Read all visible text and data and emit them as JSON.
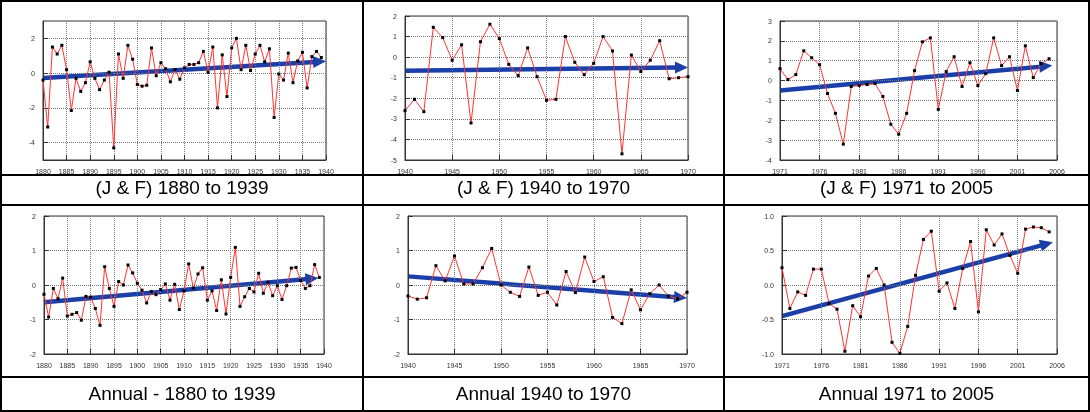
{
  "chart_data": [
    {
      "type": "line",
      "title": "(J & F) 1880 to 1939",
      "xlim": [
        1880,
        1940
      ],
      "xticks": [
        1880,
        1885,
        1890,
        1895,
        1900,
        1905,
        1910,
        1915,
        1920,
        1925,
        1930,
        1935,
        1940
      ],
      "ylim": [
        -5,
        3
      ],
      "yticks": [
        -4,
        -2,
        0,
        2
      ],
      "grid": true,
      "marker": "square",
      "x": [
        1880,
        1881,
        1882,
        1883,
        1884,
        1885,
        1886,
        1887,
        1888,
        1889,
        1890,
        1891,
        1892,
        1893,
        1894,
        1895,
        1896,
        1897,
        1898,
        1899,
        1900,
        1901,
        1902,
        1903,
        1904,
        1905,
        1906,
        1907,
        1908,
        1909,
        1910,
        1911,
        1912,
        1913,
        1914,
        1915,
        1916,
        1917,
        1918,
        1919,
        1920,
        1921,
        1922,
        1923,
        1924,
        1925,
        1926,
        1927,
        1928,
        1929,
        1930,
        1931,
        1932,
        1933,
        1934,
        1935,
        1936,
        1937,
        1938,
        1939
      ],
      "series": [
        {
          "color": "#ff3333",
          "values": [
            -0.4,
            -3.1,
            1.5,
            1.1,
            1.6,
            0.2,
            -2.15,
            -0.3,
            -1.05,
            -0.55,
            0.65,
            -0.3,
            -0.95,
            -0.4,
            0.05,
            -4.3,
            1.1,
            -0.3,
            1.6,
            0.8,
            -0.65,
            -0.75,
            -0.7,
            1.45,
            -0.15,
            0.6,
            0.25,
            -0.5,
            0.2,
            -0.35,
            0.3,
            0.5,
            0.5,
            0.6,
            1.25,
            0.05,
            1.5,
            -2.0,
            1.05,
            -1.35,
            1.45,
            2.0,
            0.2,
            1.6,
            0.15,
            1.1,
            1.6,
            0.65,
            1.4,
            -2.55,
            -0.05,
            -0.4,
            1.15,
            -0.55,
            0.7,
            1.2,
            -0.85,
            0.95,
            1.25,
            0.9
          ]
        }
      ]
    },
    {
      "type": "line",
      "title": "(J & F) 1940 to 1970",
      "xlim": [
        1940,
        1970
      ],
      "xticks": [
        1940,
        1945,
        1950,
        1955,
        1960,
        1965,
        1970
      ],
      "ylim": [
        -5,
        2
      ],
      "yticks": [
        -5,
        -4,
        -3,
        -2,
        -1,
        0,
        1,
        2
      ],
      "grid": true,
      "marker": "square",
      "x": [
        1940,
        1941,
        1942,
        1943,
        1944,
        1945,
        1946,
        1947,
        1948,
        1949,
        1950,
        1951,
        1952,
        1953,
        1954,
        1955,
        1956,
        1957,
        1958,
        1959,
        1960,
        1961,
        1962,
        1963,
        1964,
        1965,
        1966,
        1967,
        1968,
        1969,
        1970
      ],
      "series": [
        {
          "color": "#ff3333",
          "values": [
            -2.6,
            -2.05,
            -2.65,
            1.45,
            0.95,
            -0.15,
            0.6,
            -3.2,
            0.75,
            1.6,
            0.9,
            -0.35,
            -0.9,
            0.45,
            -0.95,
            -2.1,
            -2.05,
            1.0,
            -0.25,
            -0.85,
            -0.3,
            1.0,
            0.3,
            -4.7,
            0.1,
            -0.7,
            -0.15,
            0.8,
            -1.05,
            -1.0,
            -0.95
          ]
        }
      ]
    },
    {
      "type": "line",
      "title": "(J & F) 1971 to 2005",
      "xlim": [
        1971,
        2006
      ],
      "xticks": [
        1971,
        1976,
        1981,
        1986,
        1991,
        1996,
        2001,
        2006
      ],
      "ylim": [
        -4,
        3
      ],
      "yticks": [
        -4,
        -3,
        -2,
        -1,
        0,
        1,
        2,
        3
      ],
      "grid": true,
      "marker": "square",
      "x": [
        1971,
        1972,
        1973,
        1974,
        1975,
        1976,
        1977,
        1978,
        1979,
        1980,
        1981,
        1982,
        1983,
        1984,
        1985,
        1986,
        1987,
        1988,
        1989,
        1990,
        1991,
        1992,
        1993,
        1994,
        1995,
        1996,
        1997,
        1998,
        1999,
        2000,
        2001,
        2002,
        2003,
        2004,
        2005
      ],
      "series": [
        {
          "color": "#ff3333",
          "values": [
            0.6,
            0.05,
            0.3,
            1.5,
            1.15,
            0.8,
            -0.65,
            -1.65,
            -3.2,
            -0.3,
            -0.25,
            -0.2,
            -0.15,
            -0.8,
            -2.2,
            -2.7,
            -1.65,
            0.5,
            1.95,
            2.15,
            -1.45,
            0.45,
            1.2,
            -0.3,
            0.9,
            -0.25,
            0.35,
            2.15,
            0.75,
            1.2,
            -0.5,
            1.75,
            0.15,
            0.85,
            1.1
          ]
        }
      ]
    },
    {
      "type": "line",
      "title": "Annual - 1880 to 1939",
      "xlim": [
        1880,
        1940
      ],
      "xticks": [
        1880,
        1885,
        1890,
        1895,
        1900,
        1905,
        1910,
        1915,
        1920,
        1925,
        1930,
        1935,
        1940
      ],
      "ylim": [
        -2,
        2
      ],
      "yticks": [
        -2,
        -1,
        0,
        1,
        2
      ],
      "grid": true,
      "marker": "square",
      "x": [
        1880,
        1881,
        1882,
        1883,
        1884,
        1885,
        1886,
        1887,
        1888,
        1889,
        1890,
        1891,
        1892,
        1893,
        1894,
        1895,
        1896,
        1897,
        1898,
        1899,
        1900,
        1901,
        1902,
        1903,
        1904,
        1905,
        1906,
        1907,
        1908,
        1909,
        1910,
        1911,
        1912,
        1913,
        1914,
        1915,
        1916,
        1917,
        1918,
        1919,
        1920,
        1921,
        1922,
        1923,
        1924,
        1925,
        1926,
        1927,
        1928,
        1929,
        1930,
        1931,
        1932,
        1933,
        1934,
        1935,
        1936,
        1937,
        1938,
        1939
      ],
      "series": [
        {
          "color": "#ff3333",
          "values": [
            -0.27,
            -0.93,
            -0.1,
            -0.4,
            0.2,
            -0.9,
            -0.85,
            -0.8,
            -1.02,
            -0.33,
            -0.35,
            -0.68,
            -1.17,
            0.53,
            -0.1,
            -0.62,
            0.1,
            0.0,
            0.58,
            0.35,
            0.05,
            -0.15,
            -0.52,
            -0.19,
            -0.28,
            -0.13,
            0.03,
            -0.44,
            0.02,
            -0.71,
            -0.17,
            0.61,
            -0.09,
            0.32,
            0.5,
            -0.44,
            -0.17,
            -0.74,
            0.15,
            -0.84,
            0.22,
            1.09,
            -0.62,
            -0.34,
            -0.1,
            -0.2,
            0.34,
            -0.24,
            0.08,
            -0.31,
            -0.02,
            -0.42,
            -0.02,
            0.49,
            0.51,
            0.13,
            -0.1,
            -0.02,
            0.59,
            0.22
          ]
        }
      ]
    },
    {
      "type": "line",
      "title": "Annual 1940 to 1970",
      "xlim": [
        1940,
        1970
      ],
      "xticks": [
        1940,
        1945,
        1950,
        1955,
        1960,
        1965,
        1970
      ],
      "ylim": [
        -2,
        2
      ],
      "yticks": [
        -2,
        -1,
        0,
        1,
        2
      ],
      "grid": true,
      "marker": "square",
      "x": [
        1940,
        1941,
        1942,
        1943,
        1944,
        1945,
        1946,
        1947,
        1948,
        1949,
        1950,
        1951,
        1952,
        1953,
        1954,
        1955,
        1956,
        1957,
        1958,
        1959,
        1960,
        1961,
        1962,
        1963,
        1964,
        1965,
        1966,
        1967,
        1968,
        1969,
        1970
      ],
      "series": [
        {
          "color": "#ff3333",
          "values": [
            -0.32,
            -0.41,
            -0.37,
            0.56,
            0.12,
            0.84,
            0.03,
            0.03,
            0.5,
            1.06,
            0.0,
            -0.21,
            -0.33,
            0.52,
            -0.3,
            -0.21,
            -0.58,
            0.39,
            -0.22,
            0.81,
            0.1,
            0.24,
            -0.94,
            -1.12,
            -0.14,
            -0.72,
            -0.25,
            0.0,
            -0.32,
            -0.4,
            -0.21
          ]
        }
      ]
    },
    {
      "type": "line",
      "title": "Annual 1971 to 2005",
      "xlim": [
        1971,
        2006
      ],
      "xticks": [
        1971,
        1976,
        1981,
        1986,
        1991,
        1996,
        2001,
        2006
      ],
      "ylim": [
        -1,
        1
      ],
      "yticks": [
        {
          "value": -1,
          "label": "-1.0"
        },
        {
          "value": -0.5,
          "label": "-0.5"
        },
        {
          "value": 0,
          "label": "0.0"
        },
        {
          "value": 0.5,
          "label": "0.5"
        },
        {
          "value": 1,
          "label": "1.0"
        }
      ],
      "grid": true,
      "marker": "square",
      "x": [
        1971,
        1972,
        1973,
        1974,
        1975,
        1976,
        1977,
        1978,
        1979,
        1980,
        1981,
        1982,
        1983,
        1984,
        1985,
        1986,
        1987,
        1988,
        1989,
        1990,
        1991,
        1992,
        1993,
        1994,
        1995,
        1996,
        1997,
        1998,
        1999,
        2000,
        2001,
        2002,
        2003,
        2004,
        2005
      ],
      "series": [
        {
          "color": "#ff3333",
          "values": [
            0.25,
            -0.34,
            -0.1,
            -0.15,
            0.23,
            0.23,
            -0.27,
            -0.35,
            -0.96,
            -0.3,
            -0.46,
            0.13,
            0.24,
            0.0,
            -0.83,
            -0.99,
            -0.6,
            0.14,
            0.66,
            0.78,
            -0.09,
            0.03,
            -0.34,
            0.24,
            0.63,
            -0.39,
            0.8,
            0.58,
            0.74,
            0.43,
            0.17,
            0.81,
            0.84,
            0.83,
            0.77
          ]
        }
      ]
    }
  ]
}
